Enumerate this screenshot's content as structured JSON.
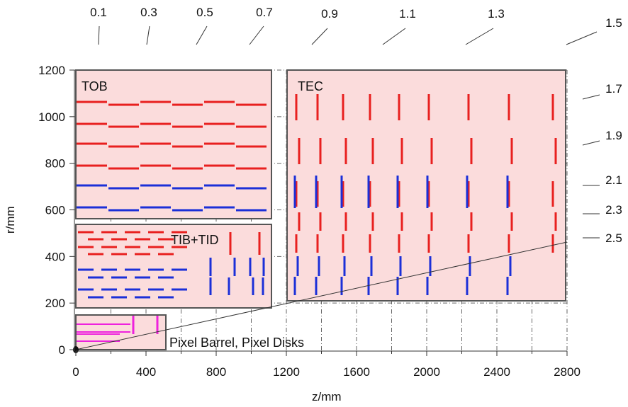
{
  "axes": {
    "x_title": "z/mm",
    "y_title": "r/mm",
    "x_ticks": [
      "0",
      "400",
      "800",
      "1200",
      "1600",
      "2000",
      "2400",
      "2800"
    ],
    "y_ticks": [
      "0",
      "200",
      "400",
      "600",
      "800",
      "1000",
      "1200"
    ]
  },
  "eta_labels": [
    "0.1",
    "0.3",
    "0.5",
    "0.7",
    "0.9",
    "1.1",
    "1.3",
    "1.5",
    "1.7",
    "1.9",
    "2.1",
    "2.3",
    "2.5"
  ],
  "regions": {
    "tob": "TOB",
    "tec": "TEC",
    "tib": "TIB+TID",
    "pixel": "Pixel Barrel, Pixel Disks"
  },
  "colors": {
    "region_fill": "#fbdcdc",
    "region_border": "#555555",
    "red": "#e8201f",
    "blue": "#1b2fd8",
    "magenta": "#ee22dd",
    "grid": "#555555"
  },
  "chart_data": {
    "type": "diagram",
    "x_range_mm": [
      0,
      2800
    ],
    "y_range_mm": [
      0,
      1200
    ],
    "grid": true,
    "eta_line": {
      "from": [
        0,
        0
      ],
      "to_eta": 2.5
    }
  }
}
